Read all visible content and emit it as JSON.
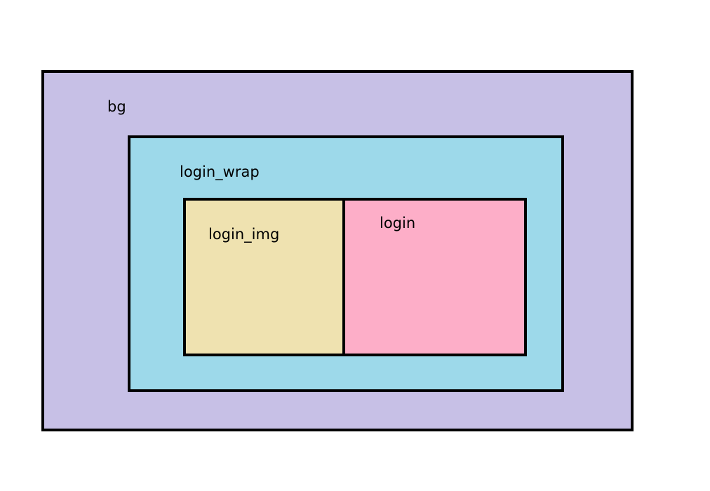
{
  "diagram": {
    "boxes": [
      {
        "id": "bg",
        "label": "bg",
        "fill": "#c7c0e6"
      },
      {
        "id": "login_wrap",
        "label": "login_wrap",
        "fill": "#9dd9ea"
      },
      {
        "id": "login_img",
        "label": "login_img",
        "fill": "#efe2b0"
      },
      {
        "id": "login",
        "label": "login",
        "fill": "#fdaec8"
      }
    ],
    "border_color": "#000000"
  }
}
